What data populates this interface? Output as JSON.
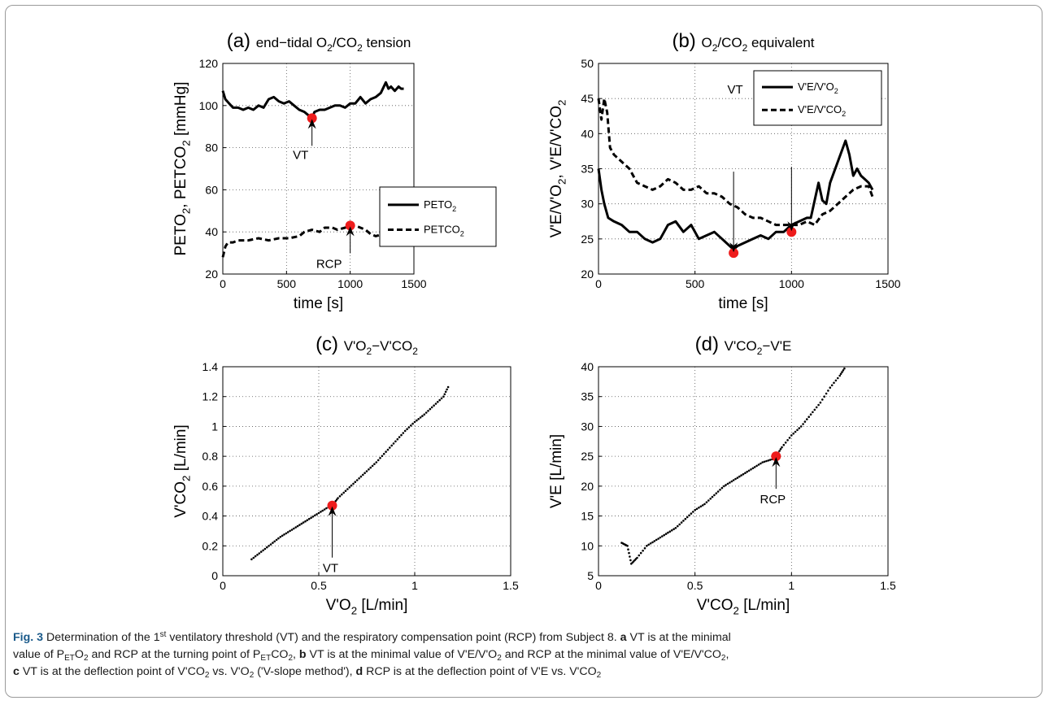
{
  "chart_data": [
    {
      "type": "line",
      "panel_label": "(a)",
      "title": "end−tidal O2/CO2 tension",
      "xlabel": "time [s]",
      "ylabel": "PETO2, PETCO2 [mmHg]",
      "xlim": [
        0,
        1500
      ],
      "ylim": [
        20,
        120
      ],
      "xticks": [
        0,
        500,
        1000,
        1500
      ],
      "yticks": [
        20,
        40,
        60,
        80,
        100,
        120
      ],
      "grid": true,
      "legend_position": "right",
      "series": [
        {
          "name": "PETO2",
          "style": "solid",
          "x": [
            0,
            20,
            50,
            80,
            120,
            160,
            200,
            240,
            280,
            320,
            360,
            400,
            440,
            480,
            520,
            560,
            600,
            640,
            680,
            700,
            720,
            760,
            800,
            840,
            880,
            920,
            960,
            1000,
            1040,
            1080,
            1120,
            1160,
            1200,
            1240,
            1280,
            1300,
            1320,
            1350,
            1380,
            1400,
            1420
          ],
          "y": [
            107,
            103,
            101,
            99,
            99,
            98,
            99,
            98,
            100,
            99,
            103,
            104,
            102,
            101,
            102,
            100,
            98,
            97,
            95,
            94,
            97,
            98,
            98,
            99,
            100,
            100,
            99,
            101,
            101,
            104,
            101,
            103,
            104,
            106,
            111,
            108,
            109,
            107,
            109,
            108,
            108
          ]
        },
        {
          "name": "PETCO2",
          "style": "dashed",
          "x": [
            0,
            20,
            40,
            80,
            120,
            200,
            280,
            360,
            440,
            520,
            600,
            640,
            700,
            760,
            800,
            860,
            900,
            960,
            1000,
            1040,
            1080,
            1120,
            1160,
            1200,
            1260,
            1300,
            1340,
            1380,
            1420
          ],
          "y": [
            28,
            33,
            35,
            35,
            36,
            36,
            37,
            36,
            37,
            37,
            38,
            40,
            41,
            40,
            42,
            42,
            41,
            42,
            43,
            43,
            42,
            41,
            39,
            38,
            39,
            38,
            39,
            36,
            36
          ]
        }
      ],
      "markers": [
        {
          "label": "VT",
          "x": 700,
          "y": 94
        },
        {
          "label": "RCP",
          "x": 1000,
          "y": 43
        }
      ]
    },
    {
      "type": "line",
      "panel_label": "(b)",
      "title": "O2/CO2 equivalent",
      "xlabel": "time [s]",
      "ylabel": "V'E/V'O2, V'E/V'CO2",
      "xlim": [
        0,
        1500
      ],
      "ylim": [
        20,
        50
      ],
      "xticks": [
        0,
        500,
        1000,
        1500
      ],
      "yticks": [
        20,
        25,
        30,
        35,
        40,
        45,
        50
      ],
      "grid": true,
      "legend_position": "top-right",
      "series": [
        {
          "name": "V'E/V'O2",
          "style": "solid",
          "x": [
            0,
            15,
            30,
            50,
            80,
            120,
            160,
            200,
            240,
            280,
            320,
            360,
            400,
            440,
            480,
            520,
            560,
            600,
            640,
            680,
            700,
            720,
            760,
            800,
            840,
            880,
            920,
            960,
            1000,
            1040,
            1080,
            1100,
            1140,
            1160,
            1180,
            1200,
            1240,
            1280,
            1300,
            1320,
            1340,
            1360,
            1380,
            1400,
            1420
          ],
          "y": [
            35,
            32,
            30,
            28,
            27.5,
            27,
            26,
            26,
            25,
            24.5,
            25,
            27,
            27.5,
            26,
            27,
            25,
            25.5,
            26,
            25,
            24,
            23.5,
            24,
            24.5,
            25,
            25.5,
            25,
            26,
            26,
            27,
            27.5,
            28,
            28,
            33,
            30.5,
            30,
            33,
            36,
            39,
            37,
            34,
            35,
            34,
            33.5,
            33,
            32
          ]
        },
        {
          "name": "V'E/V'CO2",
          "style": "dashed",
          "x": [
            0,
            15,
            30,
            45,
            60,
            80,
            120,
            160,
            200,
            240,
            280,
            320,
            360,
            400,
            440,
            480,
            520,
            560,
            600,
            640,
            680,
            720,
            760,
            800,
            840,
            880,
            920,
            960,
            1000,
            1040,
            1080,
            1120,
            1160,
            1200,
            1240,
            1280,
            1320,
            1360,
            1400,
            1420
          ],
          "y": [
            45,
            42,
            45,
            43,
            38,
            37,
            36,
            35,
            33,
            32.5,
            32,
            32.5,
            33.5,
            33,
            32,
            32,
            32.5,
            31.5,
            31.5,
            31,
            30,
            29.5,
            28.5,
            28,
            28,
            27.5,
            27,
            27,
            27,
            27,
            27.5,
            27,
            28.5,
            29,
            30,
            31,
            32,
            32.5,
            32.5,
            31
          ]
        }
      ],
      "markers": [
        {
          "label": "VT",
          "x": 700,
          "y": 23
        },
        {
          "label": "RCP",
          "x": 1000,
          "y": 26
        }
      ]
    },
    {
      "type": "scatter",
      "panel_label": "(c)",
      "title": "V'O2−V'CO2",
      "xlabel": "V'O2 [L/min]",
      "ylabel": "V'CO2 [L/min]",
      "xlim": [
        0,
        1.5
      ],
      "ylim": [
        0,
        1.4
      ],
      "xticks": [
        0,
        0.5,
        1,
        1.5
      ],
      "yticks": [
        0,
        0.2,
        0.4,
        0.6,
        0.8,
        1,
        1.2,
        1.4
      ],
      "grid": true,
      "path": {
        "x": [
          0.15,
          0.2,
          0.25,
          0.3,
          0.35,
          0.4,
          0.45,
          0.5,
          0.55,
          0.57,
          0.6,
          0.65,
          0.7,
          0.75,
          0.8,
          0.85,
          0.9,
          0.95,
          1.0,
          1.05,
          1.1,
          1.15,
          1.18
        ],
        "y": [
          0.11,
          0.16,
          0.21,
          0.26,
          0.3,
          0.34,
          0.38,
          0.42,
          0.46,
          0.47,
          0.52,
          0.58,
          0.64,
          0.7,
          0.76,
          0.83,
          0.9,
          0.97,
          1.03,
          1.08,
          1.14,
          1.2,
          1.28
        ]
      },
      "markers": [
        {
          "label": "VT",
          "x": 0.57,
          "y": 0.47
        }
      ]
    },
    {
      "type": "scatter",
      "panel_label": "(d)",
      "title": "V'CO2−V'E",
      "xlabel": "V'CO2 [L/min]",
      "ylabel": "V'E [L/min]",
      "xlim": [
        0,
        1.5
      ],
      "ylim": [
        5,
        40
      ],
      "xticks": [
        0,
        0.5,
        1,
        1.5
      ],
      "yticks": [
        5,
        10,
        15,
        20,
        25,
        30,
        35,
        40
      ],
      "grid": true,
      "path": {
        "x": [
          0.12,
          0.15,
          0.17,
          0.2,
          0.25,
          0.3,
          0.35,
          0.4,
          0.45,
          0.5,
          0.55,
          0.6,
          0.65,
          0.7,
          0.75,
          0.8,
          0.85,
          0.9,
          0.92,
          0.95,
          1.0,
          1.05,
          1.1,
          1.15,
          1.2,
          1.25,
          1.28
        ],
        "y": [
          10.5,
          10,
          7,
          8,
          10,
          11,
          12,
          13,
          14.5,
          16,
          17,
          18.5,
          20,
          21,
          22,
          23,
          24,
          24.5,
          25,
          26.5,
          28.5,
          30,
          32,
          34,
          36.5,
          38.5,
          40
        ]
      },
      "markers": [
        {
          "label": "RCP",
          "x": 0.92,
          "y": 25
        }
      ]
    }
  ],
  "caption": {
    "fig_label": "Fig. 3",
    "line1": {
      "t1": " Determination of the 1",
      "sup1": "st",
      "t2": " ventilatory threshold (VT) and the respiratory compensation point (RCP) from Subject 8. ",
      "b_a": "a",
      "t3": " VT is at the minimal"
    },
    "line2": {
      "t1": "value of P",
      "s1": "ET",
      "t2": "O",
      "s2": "2",
      "t3": " and RCP at the turning point of P",
      "s3": "ET",
      "t4": "CO",
      "s4": "2",
      "t5": ", ",
      "b_b": "b",
      "t6": " VT is at the minimal value of V'E/V'O",
      "s5": "2",
      "t7": " and RCP at the minimal value of V'E/V'CO",
      "s6": "2",
      "t8": ","
    },
    "line3": {
      "b_c": "c",
      "t1": " VT is at the deflection point of V'CO",
      "s1": "2",
      "t2": " vs. V'O",
      "s2": "2",
      "t3": " ('V-slope method'), ",
      "b_d": "d",
      "t4": " RCP is at the deflection point of V'E vs. V'CO",
      "s3": "2"
    }
  }
}
